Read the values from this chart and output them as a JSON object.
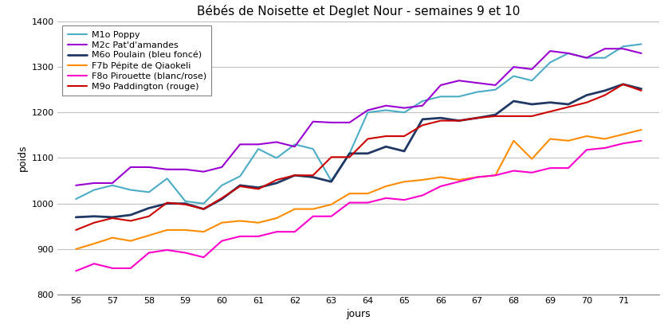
{
  "title": "Bébés de Noisette et Deglet Nour - semaines 9 et 10",
  "xlabel": "jours",
  "ylabel": "poids",
  "xlim": [
    55.5,
    72.0
  ],
  "ylim": [
    800,
    1400
  ],
  "xticks": [
    56,
    57,
    58,
    59,
    60,
    61,
    62,
    63,
    64,
    65,
    66,
    67,
    68,
    69,
    70,
    71
  ],
  "yticks": [
    800,
    900,
    1000,
    1100,
    1200,
    1300,
    1400
  ],
  "series": [
    {
      "label": "M1o Poppy",
      "color": "#4BACC6",
      "linewidth": 1.5,
      "x": [
        56,
        56.5,
        57,
        57.5,
        58,
        58.5,
        59,
        59.5,
        60,
        60.5,
        61,
        61.5,
        62,
        62.5,
        63,
        63.5,
        64,
        64.5,
        65,
        65.5,
        66,
        66.5,
        67,
        67.5,
        68,
        68.5,
        69,
        69.5,
        70,
        70.5,
        71,
        71.5
      ],
      "y": [
        1010,
        1030,
        1040,
        1030,
        1025,
        1055,
        1005,
        1000,
        1040,
        1060,
        1120,
        1100,
        1130,
        1120,
        1050,
        1110,
        1200,
        1205,
        1200,
        1225,
        1235,
        1235,
        1245,
        1250,
        1280,
        1270,
        1310,
        1330,
        1320,
        1320,
        1345,
        1350
      ]
    },
    {
      "label": "M2c Pat'd'amandes",
      "color": "#9B00D3",
      "linewidth": 1.5,
      "x": [
        56,
        56.5,
        57,
        57.5,
        58,
        58.5,
        59,
        59.5,
        60,
        60.5,
        61,
        61.5,
        62,
        62.5,
        63,
        63.5,
        64,
        64.5,
        65,
        65.5,
        66,
        66.5,
        67,
        67.5,
        68,
        68.5,
        69,
        69.5,
        70,
        70.5,
        71,
        71.5
      ],
      "y": [
        1040,
        1045,
        1045,
        1080,
        1080,
        1075,
        1075,
        1070,
        1080,
        1130,
        1130,
        1135,
        1125,
        1180,
        1178,
        1178,
        1205,
        1215,
        1210,
        1215,
        1260,
        1270,
        1265,
        1260,
        1300,
        1295,
        1335,
        1330,
        1320,
        1340,
        1340,
        1330
      ]
    },
    {
      "label": "M6o Poulain (bleu foncé)",
      "color": "#1F3864",
      "linewidth": 2.0,
      "x": [
        56,
        56.5,
        57,
        57.5,
        58,
        58.5,
        59,
        59.5,
        60,
        60.5,
        61,
        61.5,
        62,
        62.5,
        63,
        63.5,
        64,
        64.5,
        65,
        65.5,
        66,
        66.5,
        67,
        67.5,
        68,
        68.5,
        69,
        69.5,
        70,
        70.5,
        71,
        71.5
      ],
      "y": [
        970,
        972,
        970,
        975,
        990,
        1000,
        1000,
        988,
        1010,
        1040,
        1035,
        1045,
        1062,
        1058,
        1048,
        1110,
        1110,
        1125,
        1115,
        1185,
        1188,
        1182,
        1188,
        1195,
        1225,
        1218,
        1222,
        1218,
        1238,
        1248,
        1262,
        1252
      ]
    },
    {
      "label": "F7b Pépite de Qiaokeli",
      "color": "#FF8C00",
      "linewidth": 1.5,
      "x": [
        56,
        56.5,
        57,
        57.5,
        58,
        58.5,
        59,
        59.5,
        60,
        60.5,
        61,
        61.5,
        62,
        62.5,
        63,
        63.5,
        64,
        64.5,
        65,
        65.5,
        66,
        66.5,
        67,
        67.5,
        68,
        68.5,
        69,
        69.5,
        70,
        70.5,
        71,
        71.5
      ],
      "y": [
        900,
        912,
        925,
        918,
        930,
        942,
        942,
        938,
        958,
        962,
        958,
        968,
        988,
        988,
        998,
        1022,
        1022,
        1038,
        1048,
        1052,
        1058,
        1052,
        1058,
        1062,
        1138,
        1098,
        1142,
        1138,
        1148,
        1142,
        1152,
        1162
      ]
    },
    {
      "label": "F8o Pirouette (blanc/rose)",
      "color": "#FF00CC",
      "linewidth": 1.5,
      "x": [
        56,
        56.5,
        57,
        57.5,
        58,
        58.5,
        59,
        59.5,
        60,
        60.5,
        61,
        61.5,
        62,
        62.5,
        63,
        63.5,
        64,
        64.5,
        65,
        65.5,
        66,
        66.5,
        67,
        67.5,
        68,
        68.5,
        69,
        69.5,
        70,
        70.5,
        71,
        71.5
      ],
      "y": [
        852,
        868,
        858,
        858,
        892,
        898,
        892,
        882,
        918,
        928,
        928,
        938,
        938,
        972,
        972,
        1002,
        1002,
        1012,
        1008,
        1018,
        1038,
        1048,
        1058,
        1062,
        1072,
        1068,
        1078,
        1078,
        1118,
        1122,
        1132,
        1138
      ]
    },
    {
      "label": "M9o Paddington (rouge)",
      "color": "#CC0000",
      "linewidth": 1.5,
      "x": [
        56,
        56.5,
        57,
        57.5,
        58,
        58.5,
        59,
        59.5,
        60,
        60.5,
        61,
        61.5,
        62,
        62.5,
        63,
        63.5,
        64,
        64.5,
        65,
        65.5,
        66,
        66.5,
        67,
        67.5,
        68,
        68.5,
        69,
        69.5,
        70,
        70.5,
        71,
        71.5
      ],
      "y": [
        942,
        958,
        968,
        962,
        972,
        1002,
        998,
        988,
        1012,
        1038,
        1032,
        1052,
        1062,
        1062,
        1102,
        1102,
        1142,
        1148,
        1148,
        1172,
        1182,
        1182,
        1188,
        1192,
        1192,
        1192,
        1202,
        1212,
        1222,
        1238,
        1262,
        1248
      ]
    }
  ]
}
